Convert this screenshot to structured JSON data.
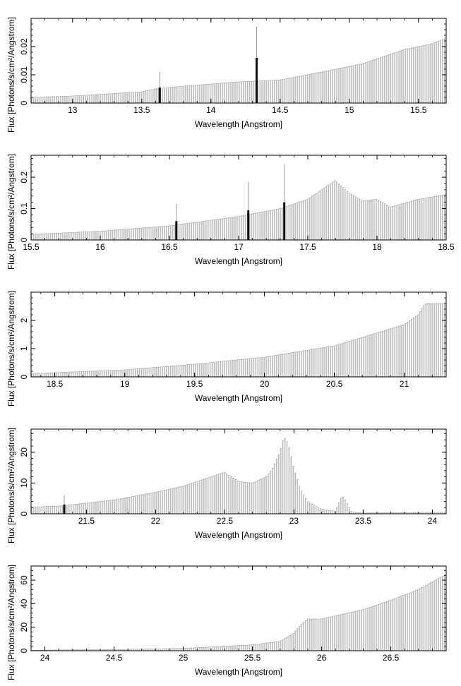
{
  "chart_data": [
    {
      "type": "bar",
      "xlabel": "Wavelength [Angstrom]",
      "ylabel": "Flux [Photons/s/cm²/Angstrom]",
      "xlim": [
        12.7,
        15.7
      ],
      "ylim": [
        0,
        0.03
      ],
      "xticks": [
        13,
        13.5,
        14,
        14.5,
        15,
        15.5
      ],
      "xtick_labels": [
        "13",
        "13.5",
        "14",
        "14.5",
        "15",
        "15.5"
      ],
      "yticks": [
        0,
        0.01,
        0.02
      ],
      "ytick_labels": [
        "0",
        "0.01",
        "0.02"
      ],
      "continuum": {
        "x": [
          12.7,
          13.0,
          13.5,
          13.6,
          13.8,
          14.2,
          14.5,
          14.8,
          15.1,
          15.4,
          15.6,
          15.7
        ],
        "y": [
          0.002,
          0.0025,
          0.004,
          0.005,
          0.006,
          0.0075,
          0.0082,
          0.011,
          0.014,
          0.019,
          0.021,
          0.023
        ]
      },
      "lines": [
        {
          "x": 13.63,
          "value": 0.0055,
          "error": 0.011
        },
        {
          "x": 14.33,
          "value": 0.016,
          "error": 0.027
        }
      ]
    },
    {
      "type": "bar",
      "xlabel": "Wavelength [Angstrom]",
      "ylabel": "Flux [Photons/s/cm²/Angstrom]",
      "xlim": [
        15.5,
        18.5
      ],
      "ylim": [
        0,
        0.27
      ],
      "xticks": [
        15.5,
        16,
        16.5,
        17,
        17.5,
        18,
        18.5
      ],
      "xtick_labels": [
        "15.5",
        "16",
        "16.5",
        "17",
        "17.5",
        "18",
        "18.5"
      ],
      "yticks": [
        0,
        0.1,
        0.2
      ],
      "ytick_labels": [
        "0",
        "0.1",
        "0.2"
      ],
      "continuum": {
        "x": [
          15.5,
          16.0,
          16.5,
          17.0,
          17.3,
          17.5,
          17.6,
          17.7,
          17.8,
          17.9,
          18.0,
          18.1,
          18.3,
          18.5
        ],
        "y": [
          0.018,
          0.028,
          0.045,
          0.075,
          0.1,
          0.13,
          0.16,
          0.19,
          0.15,
          0.125,
          0.13,
          0.105,
          0.13,
          0.145
        ]
      },
      "lines": [
        {
          "x": 16.55,
          "value": 0.06,
          "error": 0.115
        },
        {
          "x": 17.07,
          "value": 0.095,
          "error": 0.185
        },
        {
          "x": 17.33,
          "value": 0.12,
          "error": 0.24
        }
      ]
    },
    {
      "type": "bar",
      "xlabel": "Wavelength [Angstrom]",
      "ylabel": "Flux [Photons/s/cm²/Angstrom]",
      "xlim": [
        18.33,
        21.3
      ],
      "ylim": [
        0,
        3.0
      ],
      "xticks": [
        18.5,
        19,
        19.5,
        20,
        20.5,
        21
      ],
      "xtick_labels": [
        "18.5",
        "19",
        "19.5",
        "20",
        "20.5",
        "21"
      ],
      "yticks": [
        0,
        1,
        2
      ],
      "ytick_labels": [
        "0",
        "1",
        "2"
      ],
      "continuum": {
        "x": [
          18.33,
          18.5,
          19.0,
          19.5,
          20.0,
          20.5,
          20.8,
          21.0,
          21.1,
          21.15,
          21.3
        ],
        "y": [
          0.12,
          0.15,
          0.25,
          0.45,
          0.7,
          1.1,
          1.55,
          1.85,
          2.2,
          2.6,
          2.6
        ]
      },
      "lines": []
    },
    {
      "type": "bar",
      "xlabel": "Wavelength [Angstrom]",
      "ylabel": "Flux [Photons/s/cm²/Angstrom]",
      "xlim": [
        21.1,
        24.1
      ],
      "ylim": [
        0,
        27.5
      ],
      "xticks": [
        21.5,
        22,
        22.5,
        23,
        23.5,
        24
      ],
      "xtick_labels": [
        "21.5",
        "22",
        "22.5",
        "23",
        "23.5",
        "24"
      ],
      "yticks": [
        0,
        10,
        20
      ],
      "ytick_labels": [
        "0",
        "10",
        "20"
      ],
      "continuum": {
        "x": [
          21.1,
          21.3,
          21.5,
          21.7,
          22.0,
          22.2,
          22.4,
          22.5,
          22.6,
          22.7,
          22.8,
          22.85,
          22.9,
          22.93,
          22.96,
          23.0,
          23.05,
          23.1,
          23.2,
          23.3,
          23.35,
          23.38,
          23.42,
          23.5,
          24.1
        ],
        "y": [
          2.2,
          2.5,
          3.5,
          4.5,
          7,
          9,
          12,
          13.5,
          10.5,
          10,
          12,
          15,
          20,
          25,
          23,
          15,
          8,
          4,
          1.5,
          0.8,
          6,
          4,
          0.5,
          0.3,
          0.5
        ]
      },
      "lines": [
        {
          "x": 21.34,
          "value": 3.0,
          "error": 6.0
        }
      ]
    },
    {
      "type": "bar",
      "xlabel": "Wavelength [Angstrom]",
      "ylabel": "Flux [Photons/s/cm²/Angstrom]",
      "xlim": [
        23.9,
        26.9
      ],
      "ylim": [
        0,
        72
      ],
      "xticks": [
        24,
        24.5,
        25,
        25.5,
        26,
        26.5
      ],
      "xtick_labels": [
        "24",
        "24.5",
        "25",
        "25.5",
        "26",
        "26.5"
      ],
      "yticks": [
        0,
        20,
        40,
        60
      ],
      "ytick_labels": [
        "0",
        "20",
        "40",
        "60"
      ],
      "continuum": {
        "x": [
          23.9,
          24.5,
          25.0,
          25.5,
          25.7,
          25.8,
          25.85,
          25.9,
          26.0,
          26.3,
          26.5,
          26.7,
          26.9
        ],
        "y": [
          0.5,
          1,
          2,
          5,
          8,
          15,
          22,
          27,
          27,
          35,
          43,
          52,
          65
        ]
      },
      "lines": []
    }
  ]
}
